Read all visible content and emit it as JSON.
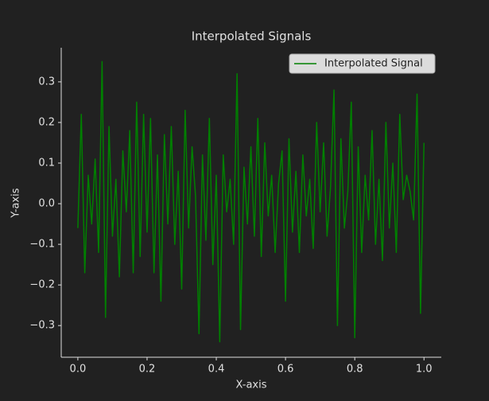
{
  "chart_data": {
    "type": "line",
    "title": "Interpolated Signals",
    "x_label": "X-axis",
    "y_label": "Y-axis",
    "x": [
      0.0,
      0.01,
      0.02,
      0.03,
      0.04,
      0.05,
      0.06,
      0.07,
      0.08,
      0.09,
      0.1,
      0.11,
      0.12,
      0.13,
      0.14,
      0.15,
      0.16,
      0.17,
      0.18,
      0.19,
      0.2,
      0.21,
      0.22,
      0.23,
      0.24,
      0.25,
      0.26,
      0.27,
      0.28,
      0.29,
      0.3,
      0.31,
      0.32,
      0.33,
      0.34,
      0.35,
      0.36,
      0.37,
      0.38,
      0.39,
      0.4,
      0.41,
      0.42,
      0.43,
      0.44,
      0.45,
      0.46,
      0.47,
      0.48,
      0.49,
      0.5,
      0.51,
      0.52,
      0.53,
      0.54,
      0.55,
      0.56,
      0.57,
      0.58,
      0.59,
      0.6,
      0.61,
      0.62,
      0.63,
      0.64,
      0.65,
      0.66,
      0.67,
      0.68,
      0.69,
      0.7,
      0.71,
      0.72,
      0.73,
      0.74,
      0.75,
      0.76,
      0.77,
      0.78,
      0.79,
      0.8,
      0.81,
      0.82,
      0.83,
      0.84,
      0.85,
      0.86,
      0.87,
      0.88,
      0.89,
      0.9,
      0.91,
      0.92,
      0.93,
      0.94,
      0.95,
      0.96,
      0.97,
      0.98,
      0.99,
      1.0
    ],
    "series": [
      {
        "name": "Interpolated Signal",
        "color": "#008000",
        "values": [
          -0.06,
          0.22,
          -0.17,
          0.07,
          -0.05,
          0.11,
          -0.12,
          0.35,
          -0.28,
          0.19,
          -0.08,
          0.06,
          -0.18,
          0.13,
          -0.02,
          0.18,
          -0.17,
          0.25,
          -0.13,
          0.22,
          -0.07,
          0.21,
          -0.17,
          0.12,
          -0.24,
          0.17,
          -0.05,
          0.19,
          -0.1,
          0.08,
          -0.21,
          0.23,
          -0.06,
          0.14,
          0.02,
          -0.32,
          0.12,
          -0.09,
          0.21,
          -0.15,
          0.07,
          -0.34,
          0.12,
          -0.02,
          0.06,
          -0.1,
          0.32,
          -0.31,
          0.09,
          -0.05,
          0.14,
          -0.08,
          0.21,
          -0.13,
          0.15,
          -0.03,
          0.07,
          -0.12,
          0.05,
          0.13,
          -0.24,
          0.16,
          -0.07,
          0.08,
          -0.12,
          0.12,
          -0.03,
          0.06,
          -0.11,
          0.2,
          -0.02,
          0.15,
          -0.08,
          0.04,
          0.28,
          -0.3,
          0.16,
          -0.06,
          0.03,
          0.25,
          -0.33,
          0.14,
          -0.12,
          0.07,
          -0.04,
          0.18,
          -0.1,
          0.06,
          -0.14,
          0.2,
          -0.06,
          0.1,
          -0.12,
          0.22,
          0.01,
          0.07,
          0.03,
          -0.04,
          0.27,
          -0.27,
          0.15
        ]
      }
    ],
    "xlim": [
      -0.048,
      1.05
    ],
    "ylim": [
      -0.378,
      0.384
    ],
    "xticks": [
      {
        "value": 0,
        "label": "0.0"
      },
      0.2,
      0.4,
      0.6,
      0.8,
      {
        "value": 1,
        "label": "1.0"
      }
    ],
    "yticks": [
      {
        "value": -0.3,
        "label": "−0.3"
      },
      {
        "value": -0.2,
        "label": "−0.2"
      },
      {
        "value": -0.1,
        "label": "−0.1"
      },
      {
        "value": 0,
        "label": "0.0"
      },
      0.1,
      0.2,
      0.3
    ],
    "legend": "upper right",
    "grid": false
  }
}
